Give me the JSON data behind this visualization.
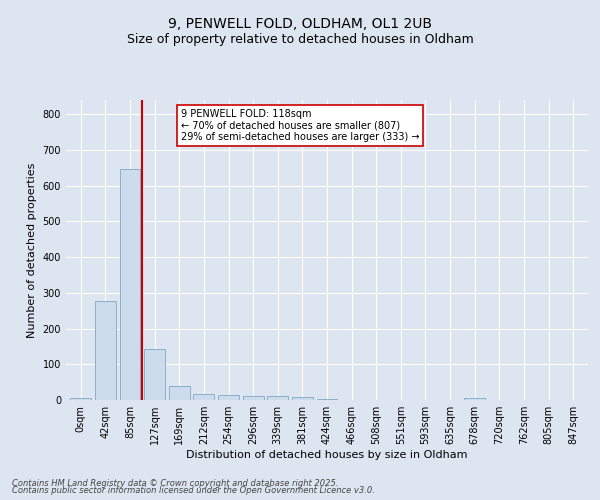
{
  "title1": "9, PENWELL FOLD, OLDHAM, OL1 2UB",
  "title2": "Size of property relative to detached houses in Oldham",
  "xlabel": "Distribution of detached houses by size in Oldham",
  "ylabel": "Number of detached properties",
  "footnote1": "Contains HM Land Registry data © Crown copyright and database right 2025.",
  "footnote2": "Contains public sector information licensed under the Open Government Licence v3.0.",
  "bar_labels": [
    "0sqm",
    "42sqm",
    "85sqm",
    "127sqm",
    "169sqm",
    "212sqm",
    "254sqm",
    "296sqm",
    "339sqm",
    "381sqm",
    "424sqm",
    "466sqm",
    "508sqm",
    "551sqm",
    "593sqm",
    "635sqm",
    "678sqm",
    "720sqm",
    "762sqm",
    "805sqm",
    "847sqm"
  ],
  "bar_values": [
    7,
    278,
    648,
    142,
    38,
    18,
    13,
    10,
    11,
    9,
    3,
    0,
    0,
    0,
    0,
    0,
    5,
    0,
    0,
    0,
    0
  ],
  "bar_color": "#ccdcec",
  "bar_edge_color": "#8ab0cc",
  "vline_x": 2.5,
  "vline_color": "#cc0000",
  "annotation_text": "9 PENWELL FOLD: 118sqm\n← 70% of detached houses are smaller (807)\n29% of semi-detached houses are larger (333) →",
  "annotation_box_color": "#ffffff",
  "annotation_box_edge": "#cc0000",
  "ylim": [
    0,
    840
  ],
  "yticks": [
    0,
    100,
    200,
    300,
    400,
    500,
    600,
    700,
    800
  ],
  "background_color": "#dde6f0",
  "plot_bg_color": "#dde6f0",
  "grid_color": "#ffffff",
  "title_fontsize": 10,
  "subtitle_fontsize": 9,
  "xlabel_fontsize": 8,
  "ylabel_fontsize": 8,
  "tick_fontsize": 7,
  "annot_fontsize": 7,
  "footnote_fontsize": 6
}
